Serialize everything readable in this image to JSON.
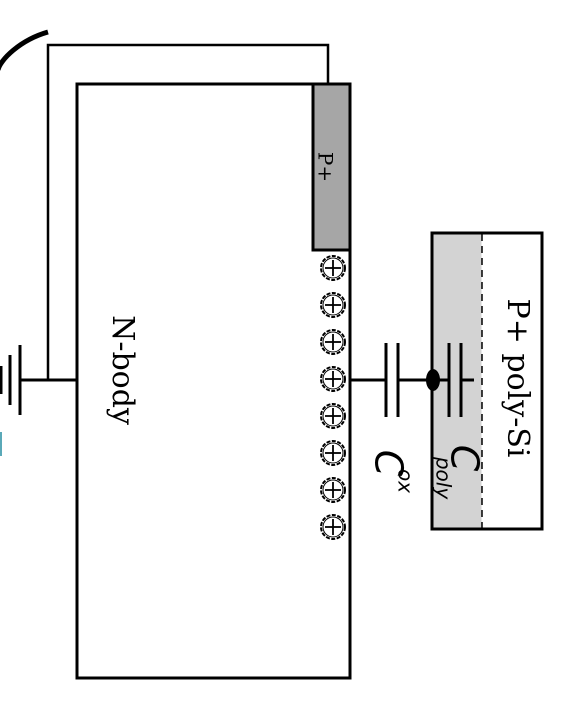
{
  "labels": {
    "n_body": "N-body",
    "p_plus": "P+",
    "p_poly": "P+ poly-Si",
    "c_ox_main": "C",
    "c_ox_sub": "ox",
    "c_poly_main": "C",
    "c_poly_sub": "poly"
  },
  "colors": {
    "line": "#000000",
    "p_plus_fill": "#a6a6a6",
    "poly_region_fill": "#d3d3d3",
    "background": "#ffffff",
    "accent": "#5aa9b8"
  },
  "hole_count": 8,
  "hole_symbol": "+"
}
